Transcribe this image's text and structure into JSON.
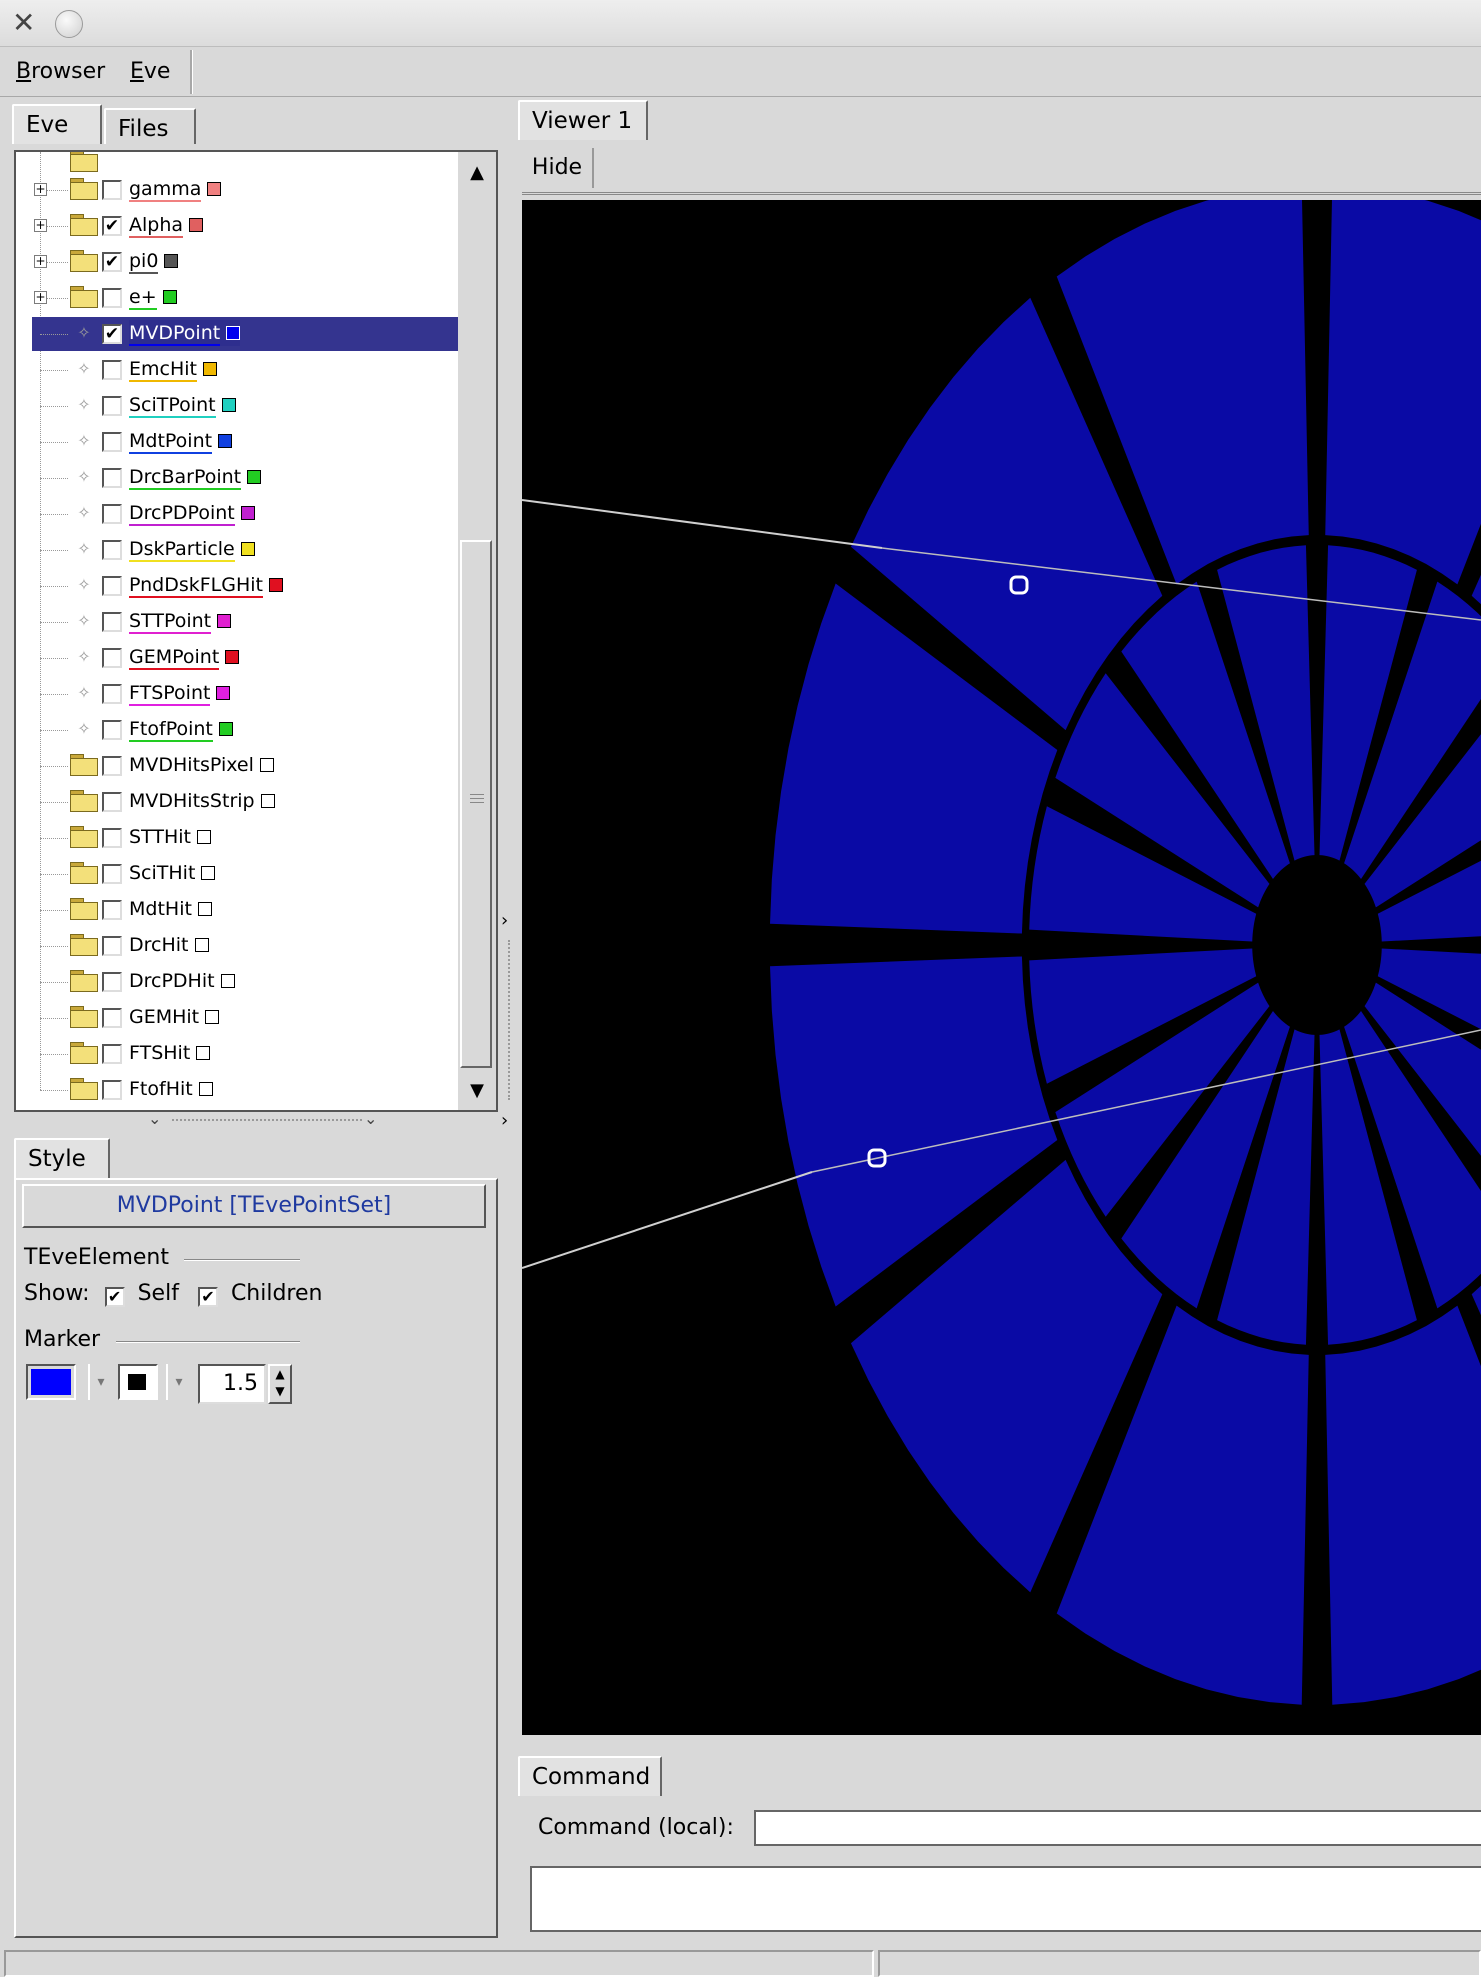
{
  "window": {
    "close_glyph": "✕"
  },
  "menubar": {
    "items": [
      "Browser",
      "Eve"
    ]
  },
  "left_tabs": [
    "Eve",
    "Files"
  ],
  "tree": {
    "items": [
      {
        "label": "gamma",
        "type": "folder",
        "checked": false,
        "color": "#f08080",
        "expander": "+"
      },
      {
        "label": "Alpha",
        "type": "folder",
        "checked": true,
        "color": "#e06060",
        "expander": "+"
      },
      {
        "label": "pi0",
        "type": "folder",
        "checked": true,
        "color": "#555555",
        "expander": "+"
      },
      {
        "label": "e+",
        "type": "folder",
        "checked": false,
        "color": "#22cc22",
        "expander": "+"
      },
      {
        "label": "MVDPoint",
        "type": "leaf",
        "checked": true,
        "color": "#0000ee",
        "selected": true
      },
      {
        "label": "EmcHit",
        "type": "leaf",
        "checked": false,
        "color": "#f0b800"
      },
      {
        "label": "SciTPoint",
        "type": "leaf",
        "checked": false,
        "color": "#20d0c0"
      },
      {
        "label": "MdtPoint",
        "type": "leaf",
        "checked": false,
        "color": "#1040e0"
      },
      {
        "label": "DrcBarPoint",
        "type": "leaf",
        "checked": false,
        "color": "#22cc22"
      },
      {
        "label": "DrcPDPoint",
        "type": "leaf",
        "checked": false,
        "color": "#c020d0"
      },
      {
        "label": "DskParticle",
        "type": "leaf",
        "checked": false,
        "color": "#f0e020"
      },
      {
        "label": "PndDskFLGHit",
        "type": "leaf",
        "checked": false,
        "color": "#e01020"
      },
      {
        "label": "STTPoint",
        "type": "leaf",
        "checked": false,
        "color": "#e020d0"
      },
      {
        "label": "GEMPoint",
        "type": "leaf",
        "checked": false,
        "color": "#e01020"
      },
      {
        "label": "FTSPoint",
        "type": "leaf",
        "checked": false,
        "color": "#e020e0"
      },
      {
        "label": "FtofPoint",
        "type": "leaf",
        "checked": false,
        "color": "#22cc22"
      },
      {
        "label": "MVDHitsPixel",
        "type": "folder",
        "checked": false,
        "color": "#ffffff"
      },
      {
        "label": "MVDHitsStrip",
        "type": "folder",
        "checked": false,
        "color": "#ffffff"
      },
      {
        "label": "STTHit",
        "type": "folder",
        "checked": false,
        "color": "#ffffff"
      },
      {
        "label": "SciTHit",
        "type": "folder",
        "checked": false,
        "color": "#ffffff"
      },
      {
        "label": "MdtHit",
        "type": "folder",
        "checked": false,
        "color": "#ffffff"
      },
      {
        "label": "DrcHit",
        "type": "folder",
        "checked": false,
        "color": "#ffffff"
      },
      {
        "label": "DrcPDHit",
        "type": "folder",
        "checked": false,
        "color": "#ffffff"
      },
      {
        "label": "GEMHit",
        "type": "folder",
        "checked": false,
        "color": "#ffffff"
      },
      {
        "label": "FTSHit",
        "type": "folder",
        "checked": false,
        "color": "#ffffff"
      },
      {
        "label": "FtofHit",
        "type": "folder",
        "checked": false,
        "color": "#ffffff"
      }
    ]
  },
  "style_panel": {
    "tab": "Style",
    "object_button": "MVDPoint [TEvePointSet]",
    "group_element": "TEveElement",
    "show_label": "Show:",
    "self_label": "Self",
    "children_label": "Children",
    "self_checked": true,
    "children_checked": true,
    "group_marker": "Marker",
    "marker_color": "#0000ff",
    "marker_style_color": "#000000",
    "marker_size": "1.5"
  },
  "viewer": {
    "tab": "Viewer 1",
    "hide_button": "Hide",
    "background": "#000000",
    "detector_color": "#0a0aa5"
  },
  "command": {
    "tab": "Command",
    "label": "Command (local):",
    "value": ""
  }
}
